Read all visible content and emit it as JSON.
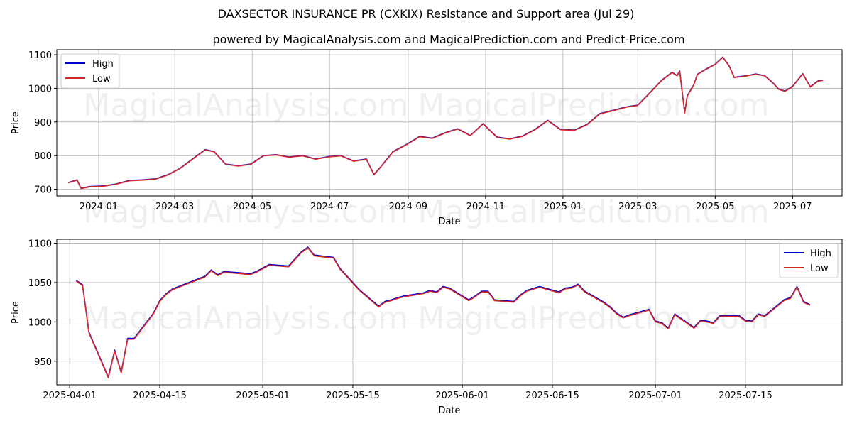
{
  "title": "DAXSECTOR INSURANCE PR (CXKIX) Resistance and Support area (Jul 29)",
  "subtitle": "powered by MagicalAnalysis.com and MagicalPrediction.com and Predict-Price.com",
  "watermarks": [
    "MagicalAnalysis.com",
    "MagicalPrediction.com"
  ],
  "colors": {
    "high": "#0000cc",
    "low": "#d62728",
    "grid": "#b0b0b0"
  },
  "chart_data": [
    {
      "type": "line",
      "title": "",
      "xlabel": "Date",
      "ylabel": "Price",
      "grid": true,
      "legend_position": "top-left",
      "xlim": [
        "2023-11-29",
        "2025-08-09"
      ],
      "ylim": [
        680,
        1115
      ],
      "x_ticks": [
        "2024-01-01",
        "2024-03-01",
        "2024-05-01",
        "2024-07-01",
        "2024-09-01",
        "2024-11-01",
        "2025-01-01",
        "2025-03-01",
        "2025-05-01",
        "2025-07-01"
      ],
      "x_tick_labels": [
        "2024-01",
        "2024-03",
        "2024-05",
        "2024-07",
        "2024-09",
        "2024-11",
        "2025-01",
        "2025-03",
        "2025-05",
        "2025-07"
      ],
      "y_ticks": [
        700,
        800,
        900,
        1000,
        1100
      ],
      "y_tick_labels": [
        "700",
        "800",
        "900",
        "1000",
        "1100"
      ],
      "series": [
        {
          "name": "High",
          "dates": [
            "2023-12-08",
            "2023-12-15",
            "2023-12-18",
            "2023-12-25",
            "2024-01-05",
            "2024-01-15",
            "2024-01-25",
            "2024-02-05",
            "2024-02-15",
            "2024-02-25",
            "2024-03-05",
            "2024-03-15",
            "2024-03-25",
            "2024-04-01",
            "2024-04-10",
            "2024-04-20",
            "2024-04-30",
            "2024-05-10",
            "2024-05-20",
            "2024-05-30",
            "2024-06-10",
            "2024-06-20",
            "2024-06-30",
            "2024-07-10",
            "2024-07-20",
            "2024-07-30",
            "2024-08-05",
            "2024-08-10",
            "2024-08-20",
            "2024-08-30",
            "2024-09-10",
            "2024-09-20",
            "2024-09-30",
            "2024-10-10",
            "2024-10-20",
            "2024-10-30",
            "2024-11-10",
            "2024-11-20",
            "2024-11-30",
            "2024-12-10",
            "2024-12-20",
            "2024-12-30",
            "2025-01-10",
            "2025-01-20",
            "2025-01-30",
            "2025-02-10",
            "2025-02-20",
            "2025-03-01",
            "2025-03-10",
            "2025-03-20",
            "2025-03-28",
            "2025-04-01",
            "2025-04-03",
            "2025-04-07",
            "2025-04-09",
            "2025-04-14",
            "2025-04-17",
            "2025-04-24",
            "2025-05-01",
            "2025-05-07",
            "2025-05-12",
            "2025-05-16",
            "2025-05-26",
            "2025-06-02",
            "2025-06-09",
            "2025-06-16",
            "2025-06-20",
            "2025-06-25",
            "2025-07-01",
            "2025-07-09",
            "2025-07-15",
            "2025-07-21",
            "2025-07-25"
          ],
          "values": [
            720,
            728,
            703,
            708,
            710,
            716,
            726,
            728,
            731,
            744,
            762,
            790,
            818,
            812,
            775,
            770,
            775,
            800,
            803,
            796,
            800,
            790,
            797,
            800,
            784,
            790,
            744,
            765,
            812,
            832,
            857,
            852,
            868,
            880,
            860,
            895,
            855,
            850,
            858,
            878,
            905,
            878,
            876,
            893,
            925,
            935,
            945,
            950,
            985,
            1025,
            1048,
            1038,
            1052,
            928,
            978,
            1010,
            1042,
            1058,
            1072,
            1093,
            1067,
            1033,
            1038,
            1043,
            1038,
            1015,
            998,
            992,
            1006,
            1044,
            1005,
            1022,
            1025
          ]
        },
        {
          "name": "Low",
          "dates": [
            "2023-12-08",
            "2023-12-15",
            "2023-12-18",
            "2023-12-25",
            "2024-01-05",
            "2024-01-15",
            "2024-01-25",
            "2024-02-05",
            "2024-02-15",
            "2024-02-25",
            "2024-03-05",
            "2024-03-15",
            "2024-03-25",
            "2024-04-01",
            "2024-04-10",
            "2024-04-20",
            "2024-04-30",
            "2024-05-10",
            "2024-05-20",
            "2024-05-30",
            "2024-06-10",
            "2024-06-20",
            "2024-06-30",
            "2024-07-10",
            "2024-07-20",
            "2024-07-30",
            "2024-08-05",
            "2024-08-10",
            "2024-08-20",
            "2024-08-30",
            "2024-09-10",
            "2024-09-20",
            "2024-09-30",
            "2024-10-10",
            "2024-10-20",
            "2024-10-30",
            "2024-11-10",
            "2024-11-20",
            "2024-11-30",
            "2024-12-10",
            "2024-12-20",
            "2024-12-30",
            "2025-01-10",
            "2025-01-20",
            "2025-01-30",
            "2025-02-10",
            "2025-02-20",
            "2025-03-01",
            "2025-03-10",
            "2025-03-20",
            "2025-03-28",
            "2025-04-01",
            "2025-04-03",
            "2025-04-07",
            "2025-04-09",
            "2025-04-14",
            "2025-04-17",
            "2025-04-24",
            "2025-05-01",
            "2025-05-07",
            "2025-05-12",
            "2025-05-16",
            "2025-05-26",
            "2025-06-02",
            "2025-06-09",
            "2025-06-16",
            "2025-06-20",
            "2025-06-25",
            "2025-07-01",
            "2025-07-09",
            "2025-07-15",
            "2025-07-21",
            "2025-07-25"
          ],
          "values": [
            719,
            727,
            702,
            707,
            709,
            715,
            725,
            727,
            730,
            743,
            761,
            789,
            817,
            811,
            774,
            769,
            774,
            799,
            802,
            795,
            799,
            789,
            796,
            799,
            783,
            789,
            743,
            764,
            811,
            831,
            856,
            851,
            867,
            879,
            859,
            894,
            854,
            849,
            857,
            877,
            904,
            877,
            875,
            892,
            924,
            934,
            944,
            949,
            984,
            1024,
            1047,
            1037,
            1051,
            927,
            977,
            1009,
            1041,
            1057,
            1071,
            1092,
            1066,
            1032,
            1037,
            1042,
            1037,
            1014,
            997,
            991,
            1005,
            1043,
            1004,
            1021,
            1024
          ]
        }
      ]
    },
    {
      "type": "line",
      "title": "",
      "xlabel": "Date",
      "ylabel": "Price",
      "grid": true,
      "legend_position": "top-right",
      "xlim": [
        "2025-03-30",
        "2025-07-30"
      ],
      "ylim": [
        920,
        1105
      ],
      "x_ticks": [
        "2025-04-01",
        "2025-04-15",
        "2025-05-01",
        "2025-05-15",
        "2025-06-01",
        "2025-06-15",
        "2025-07-01",
        "2025-07-15"
      ],
      "x_tick_labels": [
        "2025-04-01",
        "2025-04-15",
        "2025-05-01",
        "2025-05-15",
        "2025-06-01",
        "2025-06-15",
        "2025-07-01",
        "2025-07-15"
      ],
      "y_ticks": [
        950,
        1000,
        1050,
        1100
      ],
      "y_tick_labels": [
        "950",
        "1000",
        "1050",
        "1100"
      ],
      "series": [
        {
          "name": "High",
          "dates": [
            "2025-04-02",
            "2025-04-03",
            "2025-04-04",
            "2025-04-07",
            "2025-04-08",
            "2025-04-09",
            "2025-04-10",
            "2025-04-11",
            "2025-04-14",
            "2025-04-15",
            "2025-04-16",
            "2025-04-17",
            "2025-04-22",
            "2025-04-23",
            "2025-04-24",
            "2025-04-25",
            "2025-04-28",
            "2025-04-29",
            "2025-04-30",
            "2025-05-02",
            "2025-05-05",
            "2025-05-06",
            "2025-05-07",
            "2025-05-08",
            "2025-05-09",
            "2025-05-12",
            "2025-05-13",
            "2025-05-14",
            "2025-05-15",
            "2025-05-16",
            "2025-05-19",
            "2025-05-20",
            "2025-05-21",
            "2025-05-22",
            "2025-05-23",
            "2025-05-26",
            "2025-05-27",
            "2025-05-28",
            "2025-05-29",
            "2025-05-30",
            "2025-06-02",
            "2025-06-03",
            "2025-06-04",
            "2025-06-05",
            "2025-06-06",
            "2025-06-09",
            "2025-06-10",
            "2025-06-11",
            "2025-06-13",
            "2025-06-16",
            "2025-06-17",
            "2025-06-18",
            "2025-06-19",
            "2025-06-20",
            "2025-06-23",
            "2025-06-24",
            "2025-06-25",
            "2025-06-26",
            "2025-06-27",
            "2025-06-30",
            "2025-07-01",
            "2025-07-02",
            "2025-07-03",
            "2025-07-04",
            "2025-07-07",
            "2025-07-08",
            "2025-07-09",
            "2025-07-10",
            "2025-07-11",
            "2025-07-14",
            "2025-07-15",
            "2025-07-16",
            "2025-07-17",
            "2025-07-18",
            "2025-07-21",
            "2025-07-22",
            "2025-07-23",
            "2025-07-24",
            "2025-07-25"
          ],
          "values": [
            1053,
            1047,
            987,
            930,
            964,
            936,
            979,
            979,
            1011,
            1027,
            1036,
            1042,
            1058,
            1066,
            1060,
            1064,
            1062,
            1061,
            1064,
            1073,
            1071,
            1080,
            1089,
            1095,
            1085,
            1082,
            1068,
            1059,
            1050,
            1041,
            1020,
            1026,
            1028,
            1031,
            1033,
            1037,
            1040,
            1038,
            1045,
            1043,
            1028,
            1033,
            1039,
            1039,
            1028,
            1026,
            1034,
            1040,
            1045,
            1038,
            1043,
            1044,
            1048,
            1039,
            1025,
            1019,
            1011,
            1006,
            1009,
            1016,
            1001,
            999,
            992,
            1010,
            993,
            1002,
            1001,
            999,
            1008,
            1008,
            1002,
            1001,
            1010,
            1008,
            1028,
            1031,
            1045,
            1026,
            1022
          ]
        },
        {
          "name": "Low",
          "dates": [
            "2025-04-02",
            "2025-04-03",
            "2025-04-04",
            "2025-04-07",
            "2025-04-08",
            "2025-04-09",
            "2025-04-10",
            "2025-04-11",
            "2025-04-14",
            "2025-04-15",
            "2025-04-16",
            "2025-04-17",
            "2025-04-22",
            "2025-04-23",
            "2025-04-24",
            "2025-04-25",
            "2025-04-28",
            "2025-04-29",
            "2025-04-30",
            "2025-05-02",
            "2025-05-05",
            "2025-05-06",
            "2025-05-07",
            "2025-05-08",
            "2025-05-09",
            "2025-05-12",
            "2025-05-13",
            "2025-05-14",
            "2025-05-15",
            "2025-05-16",
            "2025-05-19",
            "2025-05-20",
            "2025-05-21",
            "2025-05-22",
            "2025-05-23",
            "2025-05-26",
            "2025-05-27",
            "2025-05-28",
            "2025-05-29",
            "2025-05-30",
            "2025-06-02",
            "2025-06-03",
            "2025-06-04",
            "2025-06-05",
            "2025-06-06",
            "2025-06-09",
            "2025-06-10",
            "2025-06-11",
            "2025-06-13",
            "2025-06-16",
            "2025-06-17",
            "2025-06-18",
            "2025-06-19",
            "2025-06-20",
            "2025-06-23",
            "2025-06-24",
            "2025-06-25",
            "2025-06-26",
            "2025-06-27",
            "2025-06-30",
            "2025-07-01",
            "2025-07-02",
            "2025-07-03",
            "2025-07-04",
            "2025-07-07",
            "2025-07-08",
            "2025-07-09",
            "2025-07-10",
            "2025-07-11",
            "2025-07-14",
            "2025-07-15",
            "2025-07-16",
            "2025-07-17",
            "2025-07-18",
            "2025-07-21",
            "2025-07-22",
            "2025-07-23",
            "2025-07-24",
            "2025-07-25"
          ],
          "values": [
            1052,
            1046,
            986,
            929,
            963,
            935,
            978,
            978,
            1010,
            1026,
            1035,
            1041,
            1057,
            1065,
            1059,
            1063,
            1061,
            1060,
            1063,
            1072,
            1070,
            1079,
            1088,
            1094,
            1084,
            1081,
            1067,
            1058,
            1049,
            1040,
            1019,
            1025,
            1027,
            1030,
            1032,
            1036,
            1039,
            1037,
            1044,
            1042,
            1027,
            1032,
            1038,
            1038,
            1027,
            1025,
            1033,
            1039,
            1044,
            1037,
            1042,
            1043,
            1047,
            1038,
            1024,
            1018,
            1010,
            1005,
            1008,
            1015,
            1000,
            998,
            991,
            1009,
            992,
            1001,
            1000,
            998,
            1007,
            1007,
            1001,
            1000,
            1009,
            1007,
            1027,
            1030,
            1044,
            1025,
            1021
          ]
        }
      ]
    }
  ]
}
